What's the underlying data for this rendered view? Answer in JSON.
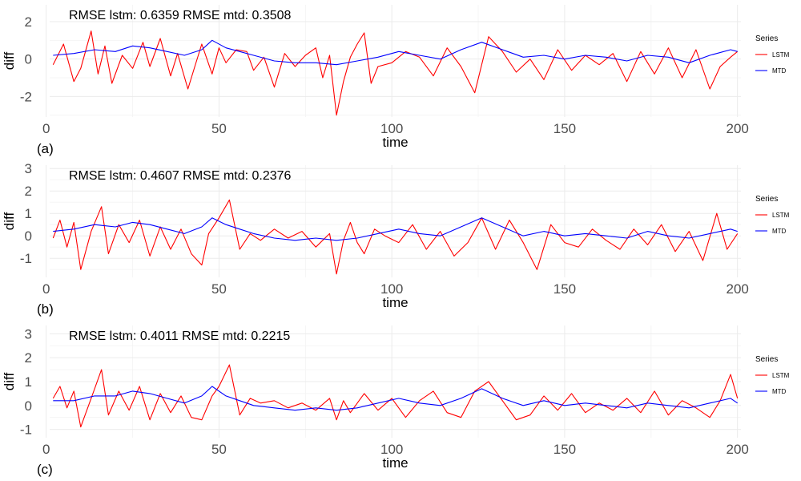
{
  "chart_data": [
    {
      "type": "line",
      "panel_label": "(a)",
      "annotation": "RMSE lstm: 0.6359 RMSE mtd: 0.3508",
      "xlabel": "time",
      "ylabel": "diff",
      "xlim": [
        1,
        201
      ],
      "ylim": [
        -3.1,
        2.9
      ],
      "xticks": [
        "0",
        "50",
        "100",
        "150",
        "200"
      ],
      "yticks": [
        "2",
        "0",
        "-2"
      ],
      "grid": true,
      "legend_title": "Series",
      "legend_position": "right",
      "series": [
        {
          "name": "LSTM",
          "color": "#ff0000",
          "x": [
            2,
            5,
            8,
            10,
            13,
            15,
            17,
            19,
            22,
            25,
            28,
            30,
            33,
            36,
            38,
            41,
            43,
            45,
            48,
            50,
            52,
            55,
            58,
            60,
            63,
            66,
            69,
            72,
            75,
            78,
            80,
            82,
            84,
            86,
            88,
            90,
            92,
            94,
            96,
            100,
            104,
            108,
            112,
            116,
            120,
            124,
            128,
            132,
            136,
            140,
            144,
            148,
            152,
            156,
            160,
            164,
            168,
            172,
            176,
            180,
            184,
            188,
            192,
            195,
            198,
            200
          ],
          "values": [
            -0.3,
            0.8,
            -1.2,
            -0.5,
            1.5,
            -0.8,
            0.7,
            -1.3,
            0.2,
            -0.5,
            0.9,
            -0.4,
            1.1,
            -0.9,
            0.3,
            -1.6,
            -0.4,
            0.8,
            -0.8,
            0.6,
            -0.2,
            0.5,
            0.4,
            -0.6,
            0.1,
            -1.5,
            0.3,
            -0.4,
            0.2,
            0.6,
            -1.0,
            0.2,
            -3.0,
            -1.2,
            0.1,
            0.8,
            1.4,
            -1.3,
            -0.4,
            -0.2,
            0.4,
            0.1,
            -0.9,
            0.6,
            -0.4,
            -1.8,
            1.2,
            0.4,
            -0.7,
            0.0,
            -1.1,
            0.5,
            -0.6,
            0.2,
            -0.3,
            0.3,
            -1.2,
            0.4,
            -0.8,
            0.6,
            -1.0,
            0.5,
            -1.6,
            -0.4,
            0.1,
            0.4
          ]
        },
        {
          "name": "MTD",
          "color": "#0000ff",
          "x": [
            2,
            8,
            14,
            20,
            25,
            30,
            35,
            40,
            45,
            48,
            52,
            56,
            60,
            66,
            72,
            78,
            84,
            90,
            96,
            102,
            108,
            114,
            120,
            126,
            132,
            138,
            144,
            150,
            156,
            162,
            168,
            174,
            180,
            186,
            192,
            198,
            200
          ],
          "values": [
            0.2,
            0.3,
            0.5,
            0.4,
            0.7,
            0.6,
            0.4,
            0.2,
            0.5,
            1.0,
            0.6,
            0.4,
            0.2,
            -0.1,
            -0.2,
            -0.2,
            -0.3,
            -0.1,
            0.1,
            0.4,
            0.2,
            0.0,
            0.5,
            0.9,
            0.5,
            0.1,
            0.2,
            0.0,
            0.2,
            0.1,
            -0.1,
            0.2,
            0.1,
            -0.2,
            0.2,
            0.5,
            0.4
          ]
        }
      ]
    },
    {
      "type": "line",
      "panel_label": "(b)",
      "annotation": "RMSE lstm: 0.4607 RMSE mtd: 0.2376",
      "xlabel": "time",
      "ylabel": "diff",
      "xlim": [
        1,
        201
      ],
      "ylim": [
        -1.85,
        3.15
      ],
      "xticks": [
        "0",
        "50",
        "100",
        "150",
        "200"
      ],
      "yticks": [
        "3",
        "2",
        "1",
        "0",
        "-1"
      ],
      "grid": true,
      "legend_title": "Series",
      "legend_position": "right",
      "series": [
        {
          "name": "LSTM",
          "color": "#ff0000",
          "x": [
            2,
            4,
            6,
            8,
            10,
            13,
            16,
            18,
            21,
            24,
            27,
            30,
            33,
            36,
            39,
            42,
            45,
            47,
            50,
            53,
            56,
            59,
            62,
            66,
            70,
            74,
            78,
            82,
            84,
            86,
            88,
            90,
            92,
            95,
            98,
            102,
            106,
            110,
            114,
            118,
            122,
            126,
            130,
            134,
            138,
            142,
            146,
            150,
            154,
            158,
            162,
            166,
            170,
            174,
            178,
            182,
            186,
            190,
            194,
            197,
            200
          ],
          "values": [
            -0.1,
            0.7,
            -0.5,
            0.6,
            -1.5,
            0.2,
            1.3,
            -0.8,
            0.5,
            -0.3,
            0.7,
            -0.9,
            0.4,
            -0.6,
            0.3,
            -0.8,
            -1.3,
            0.1,
            0.8,
            1.6,
            -0.6,
            0.1,
            -0.2,
            0.3,
            -0.1,
            0.2,
            -0.5,
            0.1,
            -1.7,
            -0.2,
            0.6,
            -0.3,
            -0.8,
            0.3,
            0.0,
            -0.3,
            0.5,
            -0.6,
            0.2,
            -0.9,
            -0.3,
            0.8,
            -0.6,
            0.7,
            -0.3,
            -1.5,
            0.5,
            -0.3,
            -0.5,
            0.3,
            -0.2,
            -0.6,
            0.3,
            -0.4,
            0.5,
            -0.7,
            0.2,
            -1.1,
            1.0,
            -0.6,
            0.1
          ]
        },
        {
          "name": "MTD",
          "color": "#0000ff",
          "x": [
            2,
            8,
            14,
            20,
            25,
            30,
            35,
            40,
            45,
            48,
            52,
            56,
            60,
            66,
            72,
            78,
            84,
            90,
            96,
            102,
            108,
            114,
            120,
            126,
            132,
            138,
            144,
            150,
            156,
            162,
            168,
            174,
            180,
            186,
            192,
            198,
            200
          ],
          "values": [
            0.2,
            0.3,
            0.5,
            0.4,
            0.6,
            0.5,
            0.3,
            0.1,
            0.4,
            0.8,
            0.5,
            0.3,
            0.1,
            -0.1,
            -0.2,
            -0.1,
            -0.2,
            -0.1,
            0.1,
            0.3,
            0.1,
            0.0,
            0.4,
            0.8,
            0.4,
            0.0,
            0.2,
            0.0,
            0.1,
            0.0,
            -0.1,
            0.2,
            0.0,
            -0.1,
            0.1,
            0.3,
            0.2
          ]
        }
      ]
    },
    {
      "type": "line",
      "panel_label": "(c)",
      "annotation": "RMSE lstm: 0.4011 RMSE mtd: 0.2215",
      "xlabel": "time",
      "ylabel": "diff",
      "xlim": [
        1,
        201
      ],
      "ylim": [
        -1.35,
        3.35
      ],
      "xticks": [
        "0",
        "50",
        "100",
        "150",
        "200"
      ],
      "yticks": [
        "3",
        "2",
        "1",
        "0",
        "-1"
      ],
      "grid": true,
      "legend_title": "Series",
      "legend_position": "right",
      "series": [
        {
          "name": "LSTM",
          "color": "#ff0000",
          "x": [
            2,
            4,
            6,
            8,
            10,
            13,
            16,
            18,
            21,
            24,
            27,
            30,
            33,
            36,
            39,
            42,
            45,
            48,
            50,
            53,
            56,
            59,
            62,
            66,
            70,
            74,
            78,
            82,
            84,
            86,
            88,
            92,
            96,
            100,
            104,
            108,
            112,
            116,
            120,
            124,
            128,
            132,
            136,
            140,
            144,
            148,
            152,
            156,
            160,
            164,
            168,
            172,
            176,
            180,
            184,
            188,
            192,
            195,
            198,
            200
          ],
          "values": [
            0.3,
            0.8,
            -0.1,
            0.6,
            -0.9,
            0.3,
            1.5,
            -0.4,
            0.6,
            -0.2,
            0.8,
            -0.6,
            0.5,
            -0.3,
            0.4,
            -0.5,
            -0.6,
            0.4,
            0.8,
            1.7,
            -0.4,
            0.3,
            0.1,
            0.2,
            -0.1,
            0.1,
            -0.2,
            0.3,
            -0.6,
            0.2,
            -0.3,
            0.5,
            -0.2,
            0.3,
            -0.5,
            0.2,
            0.6,
            -0.3,
            -0.5,
            0.6,
            1.0,
            0.2,
            -0.6,
            -0.4,
            0.4,
            -0.2,
            0.5,
            -0.3,
            0.1,
            -0.2,
            0.3,
            -0.3,
            0.6,
            -0.4,
            0.2,
            -0.1,
            -0.5,
            0.2,
            1.3,
            0.3
          ]
        },
        {
          "name": "MTD",
          "color": "#0000ff",
          "x": [
            2,
            8,
            14,
            20,
            25,
            30,
            35,
            40,
            45,
            48,
            52,
            56,
            60,
            66,
            72,
            78,
            84,
            90,
            96,
            102,
            108,
            114,
            120,
            126,
            132,
            138,
            144,
            150,
            156,
            162,
            168,
            174,
            180,
            186,
            192,
            198,
            200
          ],
          "values": [
            0.2,
            0.2,
            0.4,
            0.4,
            0.6,
            0.5,
            0.3,
            0.1,
            0.4,
            0.8,
            0.4,
            0.2,
            0.0,
            -0.1,
            -0.2,
            -0.1,
            -0.2,
            -0.1,
            0.1,
            0.3,
            0.1,
            0.0,
            0.3,
            0.7,
            0.3,
            0.0,
            0.2,
            0.0,
            0.1,
            0.0,
            -0.1,
            0.1,
            0.0,
            -0.1,
            0.1,
            0.3,
            0.1
          ]
        }
      ]
    }
  ]
}
